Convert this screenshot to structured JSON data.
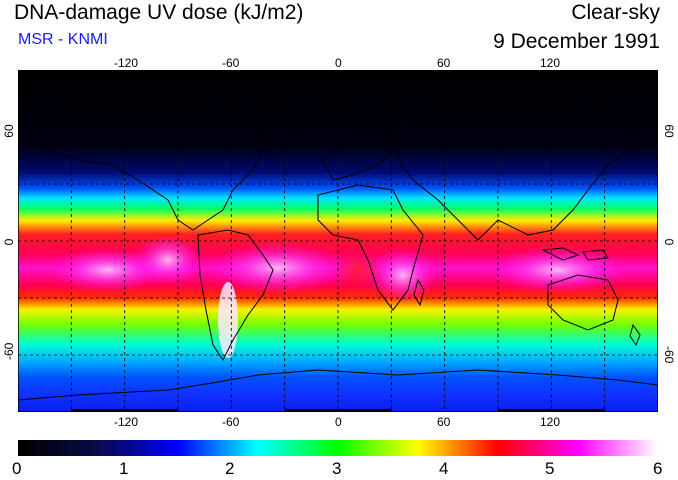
{
  "header": {
    "title": "DNA-damage UV dose (kJ/m2)",
    "source": "MSR - KNMI",
    "sky": "Clear-sky",
    "date": "9 December 1991"
  },
  "map": {
    "projection": "equirectangular",
    "lon_ticks": [
      "-120",
      "-60",
      "0",
      "60",
      "120"
    ],
    "lat_ticks_left": [
      "60",
      "0",
      "-60"
    ],
    "lat_ticks_right": [
      "60",
      "0",
      "-60"
    ]
  },
  "colorbar": {
    "min": 0,
    "max": 6,
    "labels": [
      "0",
      "1",
      "2",
      "3",
      "4",
      "5",
      "6"
    ],
    "colors": [
      "#000000",
      "#0a0a4a",
      "#0000ff",
      "#00ffff",
      "#00ff00",
      "#ffff00",
      "#ff0000",
      "#ff00ff",
      "#ffffff"
    ]
  }
}
